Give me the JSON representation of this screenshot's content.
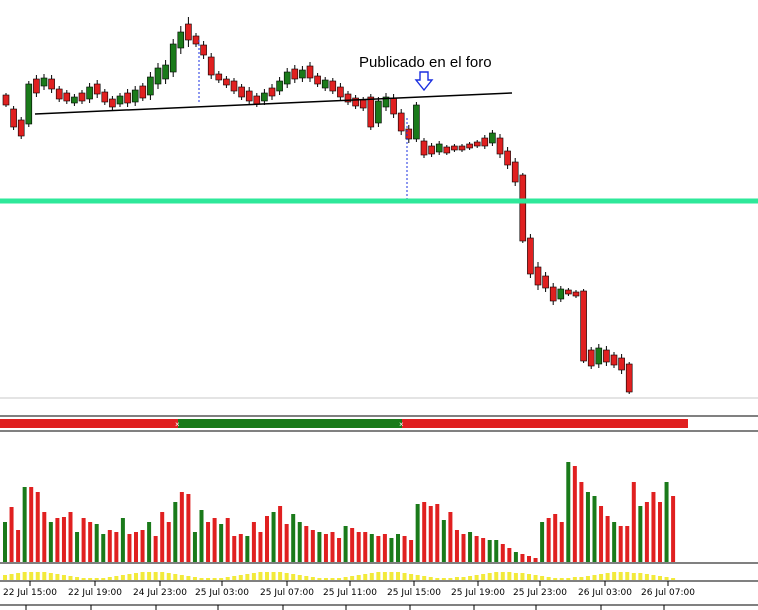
{
  "chart_data": {
    "type": "candlestick",
    "panels": [
      "price",
      "trend-bar",
      "volume",
      "volume-trend"
    ],
    "x_tick_labels": [
      "22 Jul 15:00",
      "22 Jul 19:00",
      "24 Jul 23:00",
      "25 Jul 03:00",
      "25 Jul 07:00",
      "25 Jul 11:00",
      "25 Jul 15:00",
      "25 Jul 19:00",
      "25 Jul 23:00",
      "26 Jul 03:00",
      "26 Jul 07:00"
    ],
    "annotation": "Publicado en el foro",
    "colors": {
      "bull": "#1a7a1a",
      "bear": "#e02020",
      "horizontal_line": "#2ee89a",
      "trend_line": "#000000",
      "arrow": "#1a2fe0",
      "volume_avg": "#f2ea3a"
    },
    "grid": false
  }
}
